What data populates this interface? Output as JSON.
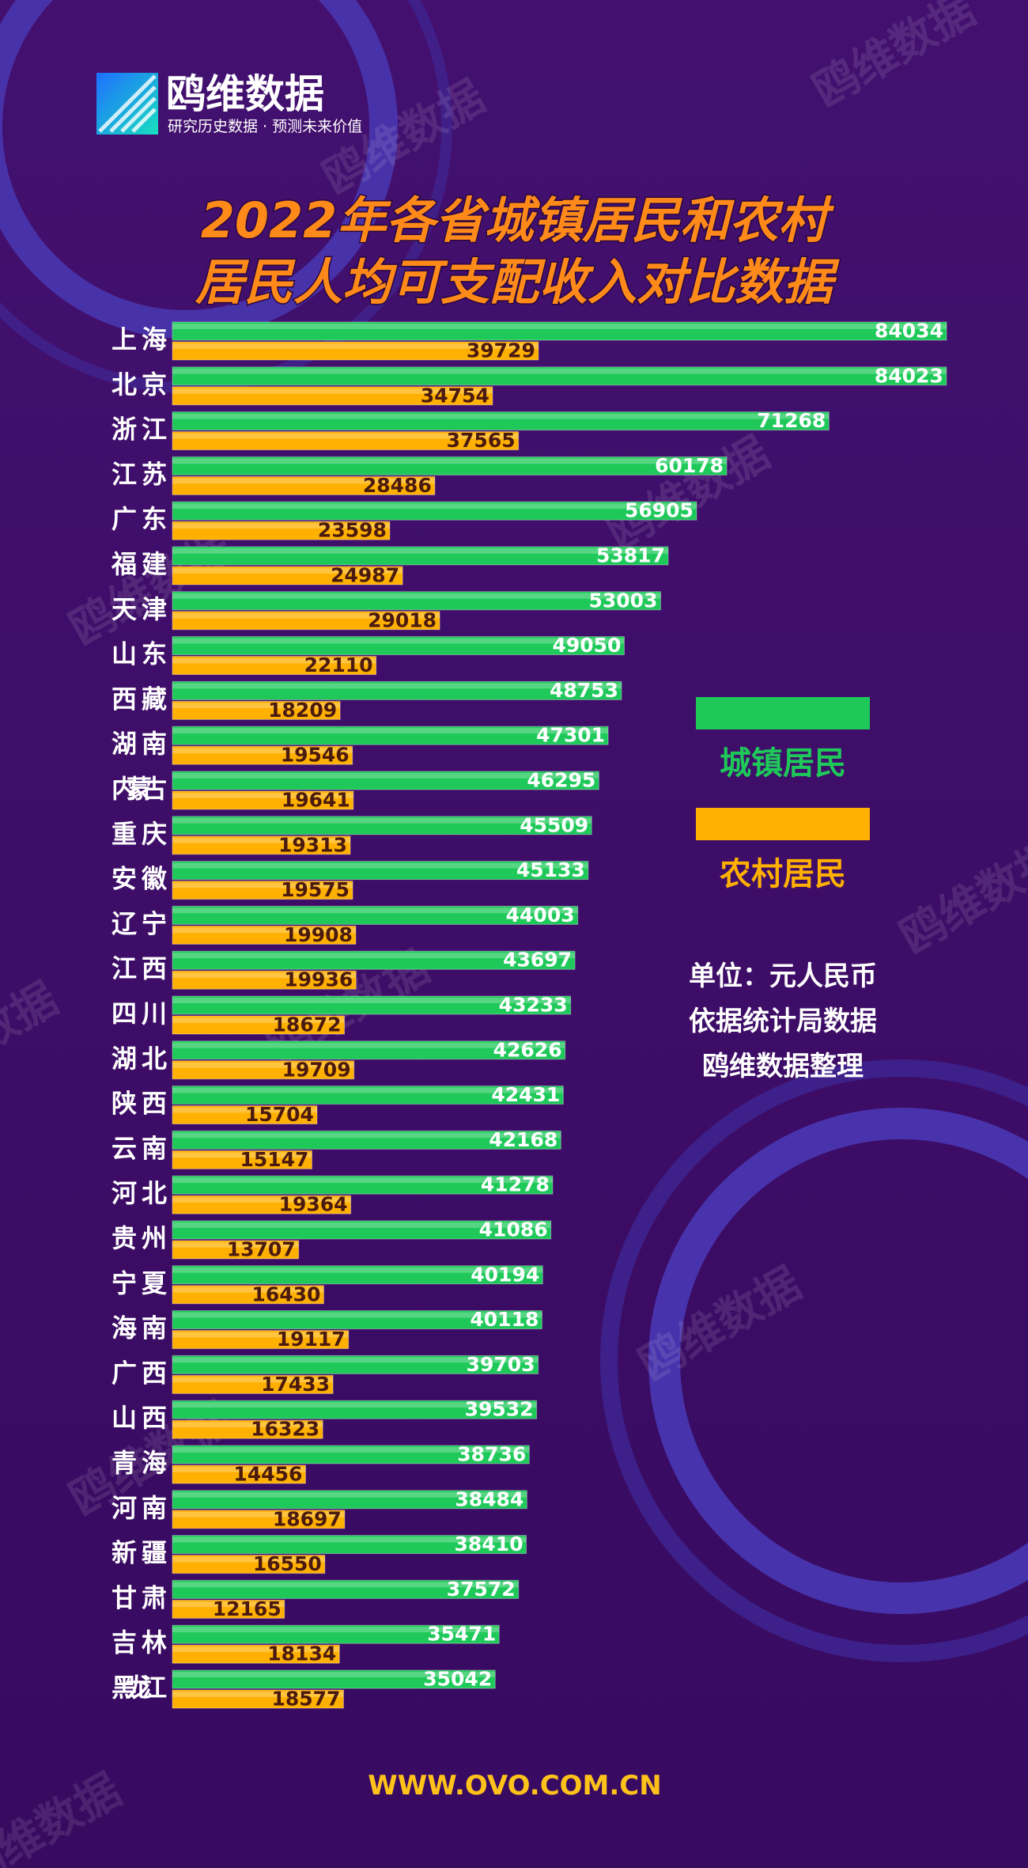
{
  "brand": "鸥维数据",
  "slogan": "研究历史数据 · 预测未来价值",
  "watermark": "鸥维数据",
  "notes": [
    "单位：元人民币",
    "依据统计局数据",
    "鸥维数据整理"
  ],
  "website": "WWW.OVO.COM.CN",
  "chart_data": {
    "type": "bar",
    "orientation": "horizontal",
    "title": [
      "2022年各省城镇居民和农村",
      "居民人均可支配收入对比数据"
    ],
    "categories": [
      "上海",
      "北京",
      "浙江",
      "江苏",
      "广东",
      "福建",
      "天津",
      "山东",
      "西藏",
      "湖南",
      "内蒙古",
      "重庆",
      "安徽",
      "辽宁",
      "江西",
      "四川",
      "湖北",
      "陕西",
      "云南",
      "河北",
      "贵州",
      "宁夏",
      "海南",
      "广西",
      "山西",
      "青海",
      "河南",
      "新疆",
      "甘肃",
      "吉林",
      "黑龙江"
    ],
    "series": [
      {
        "name": "城镇居民",
        "color": "#1ec95a",
        "label_color": "#ffffff",
        "values": [
          84034,
          84023,
          71268,
          60178,
          56905,
          53817,
          53003,
          49050,
          48753,
          47301,
          46295,
          45509,
          45133,
          44003,
          43697,
          43233,
          42626,
          42431,
          42168,
          41278,
          41086,
          40194,
          40118,
          39703,
          39532,
          38736,
          38484,
          38410,
          37572,
          35471,
          35042
        ]
      },
      {
        "name": "农村居民",
        "color": "#ffb000",
        "label_color": "#4a1a10",
        "values": [
          39729,
          34754,
          37565,
          28486,
          23598,
          24987,
          29018,
          22110,
          18209,
          19546,
          19641,
          19313,
          19575,
          19908,
          19936,
          18672,
          19709,
          15704,
          15147,
          19364,
          13707,
          16430,
          19117,
          17433,
          16323,
          14456,
          18697,
          16550,
          12165,
          18134,
          18577
        ]
      }
    ]
  }
}
